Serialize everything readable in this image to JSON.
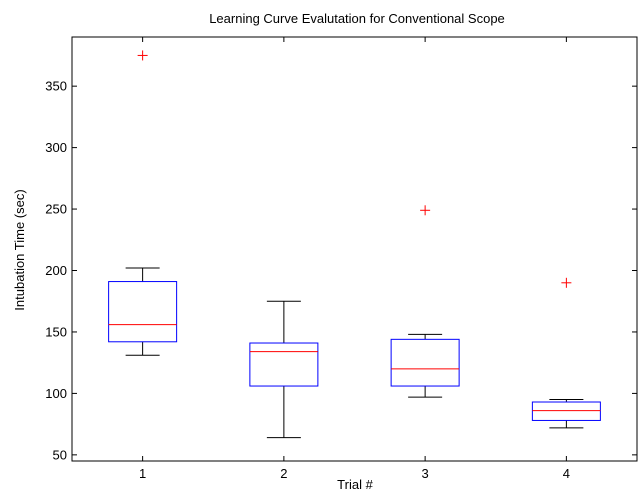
{
  "chart_data": {
    "type": "box",
    "title": "Learning Curve Evalutation for Conventional Scope",
    "xlabel": "Trial #",
    "ylabel": "Intubation Time (sec)",
    "categories": [
      "1",
      "2",
      "3",
      "4"
    ],
    "ylim": [
      45,
      390
    ],
    "yticks": [
      50,
      100,
      150,
      200,
      250,
      300,
      350
    ],
    "grid": false,
    "boxes": [
      {
        "category": "1",
        "whisker_low": 131,
        "q1": 142,
        "median": 156,
        "q3": 191,
        "whisker_high": 202,
        "outliers": [
          375
        ]
      },
      {
        "category": "2",
        "whisker_low": 64,
        "q1": 106,
        "median": 134,
        "q3": 141,
        "whisker_high": 175,
        "outliers": []
      },
      {
        "category": "3",
        "whisker_low": 97,
        "q1": 106,
        "median": 120,
        "q3": 144,
        "whisker_high": 148,
        "outliers": [
          249
        ]
      },
      {
        "category": "4",
        "whisker_low": 72,
        "q1": 78,
        "median": 86,
        "q3": 93,
        "whisker_high": 95,
        "outliers": [
          190
        ]
      }
    ],
    "colors": {
      "box": "#0000ff",
      "median": "#ff0000",
      "whisker": "#000000",
      "outlier": "#ff0000"
    }
  }
}
